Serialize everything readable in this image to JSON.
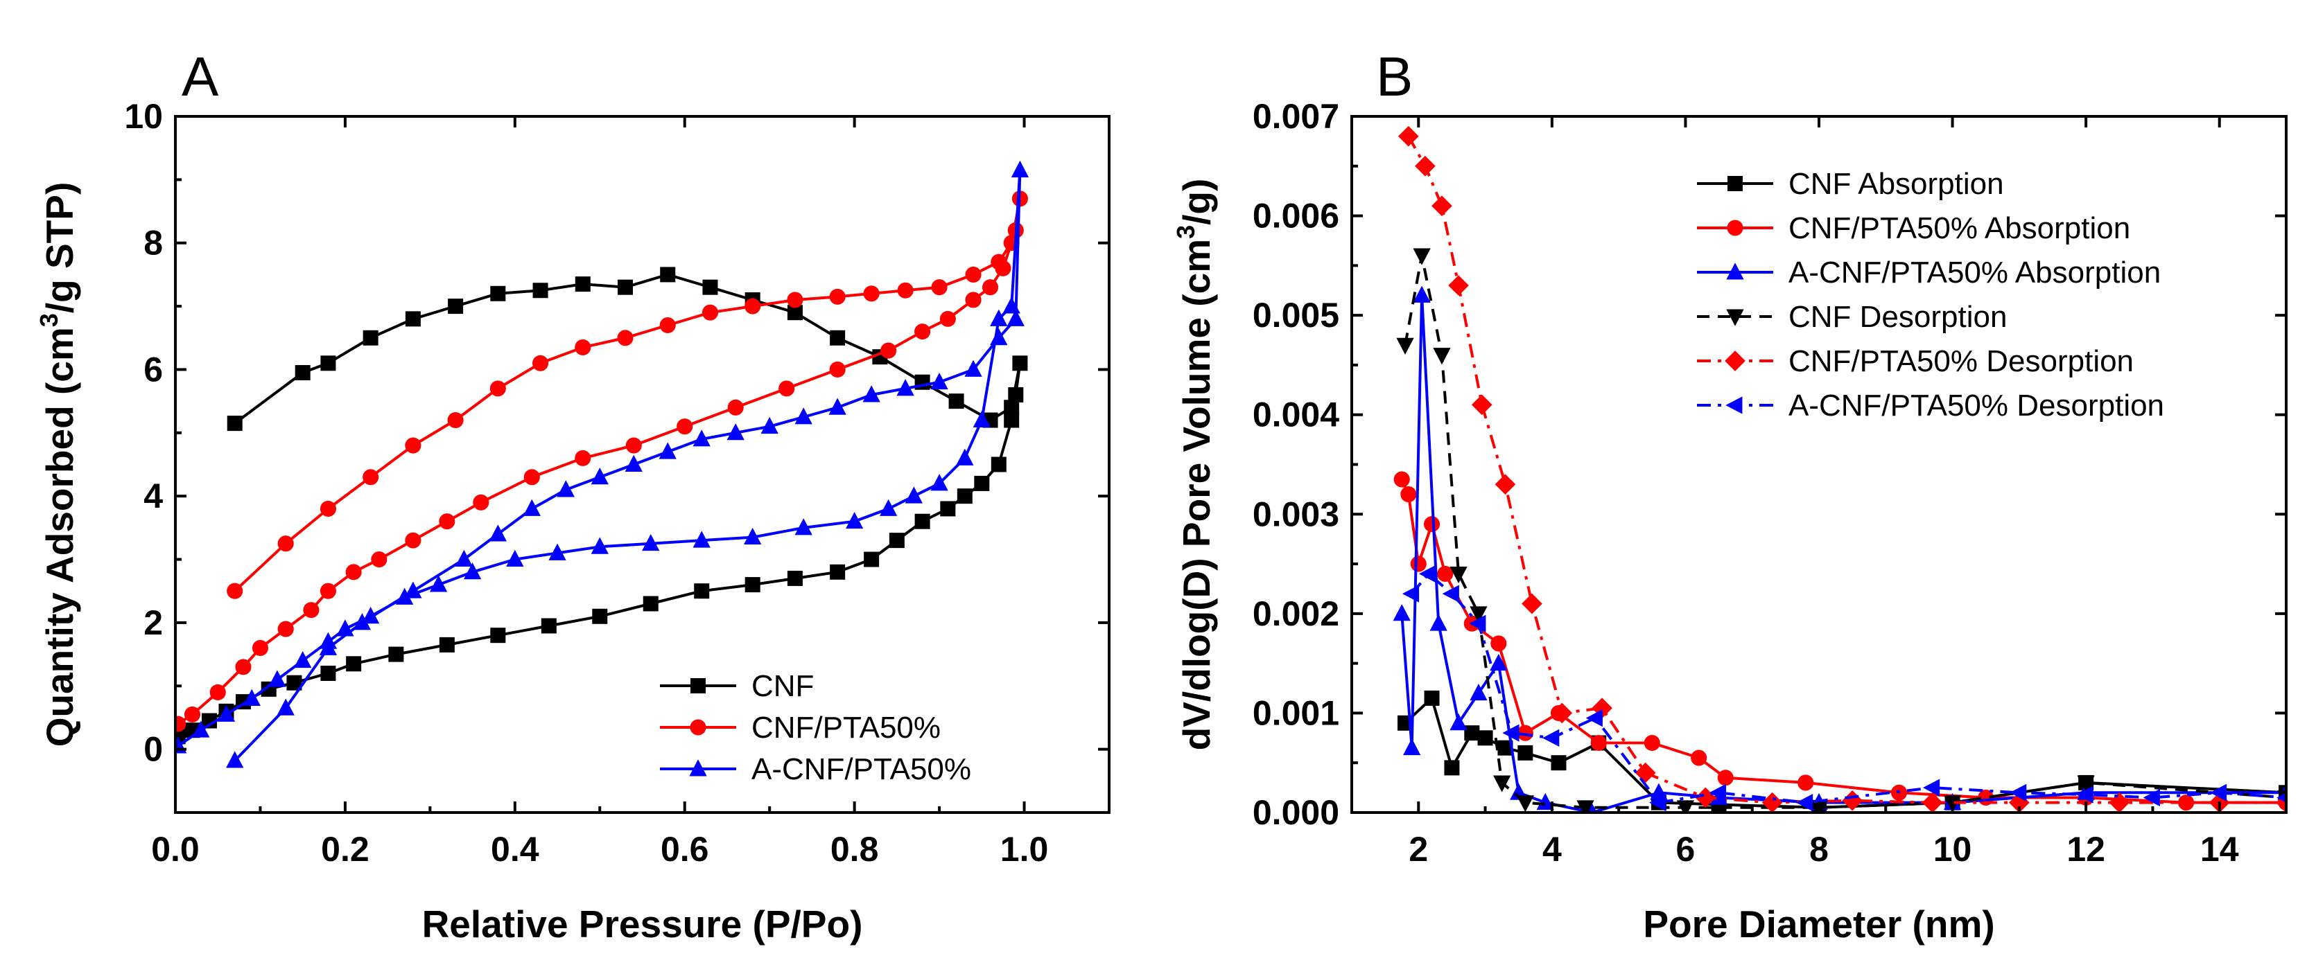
{
  "chart_data": [
    {
      "panel": "A",
      "type": "line",
      "xlabel": "Relative Pressure (P/Po)",
      "ylabel_pre": "Quantity Adsorbed (cm",
      "ylabel_sup": "3",
      "ylabel_post": "/g STP)",
      "xlim": [
        0.0,
        1.1
      ],
      "ylim": [
        -1,
        10
      ],
      "xticks": [
        "0.0",
        "0.2",
        "0.4",
        "0.6",
        "0.8",
        "1.0"
      ],
      "xtick_values": [
        0,
        0.2,
        0.4,
        0.6,
        0.8,
        1.0
      ],
      "yticks": [
        "0",
        "2",
        "4",
        "6",
        "8",
        "10"
      ],
      "ytick_values": [
        0,
        2,
        4,
        6,
        8,
        10
      ],
      "legend_position": "bottom-right",
      "series": [
        {
          "name": "CNF",
          "color": "#000000",
          "marker": "square",
          "x": [
            0.003,
            0.02,
            0.04,
            0.06,
            0.08,
            0.11,
            0.14,
            0.18,
            0.21,
            0.26,
            0.32,
            0.38,
            0.44,
            0.5,
            0.56,
            0.62,
            0.68,
            0.73,
            0.78,
            0.82,
            0.85,
            0.88,
            0.91,
            0.93,
            0.95,
            0.97,
            0.985,
            0.99,
            0.995,
            0.985,
            0.96,
            0.92,
            0.88,
            0.83,
            0.78,
            0.73,
            0.68,
            0.63,
            0.58,
            0.53,
            0.48,
            0.43,
            0.38,
            0.33,
            0.28,
            0.23,
            0.18,
            0.15,
            0.07
          ],
          "y": [
            0.2,
            0.3,
            0.45,
            0.6,
            0.75,
            0.95,
            1.05,
            1.2,
            1.35,
            1.5,
            1.65,
            1.8,
            1.95,
            2.1,
            2.3,
            2.5,
            2.6,
            2.7,
            2.8,
            3.0,
            3.3,
            3.6,
            3.8,
            4.0,
            4.2,
            4.5,
            5.2,
            5.6,
            6.1,
            5.4,
            5.2,
            5.5,
            5.8,
            6.2,
            6.5,
            6.9,
            7.1,
            7.3,
            7.5,
            7.3,
            7.35,
            7.25,
            7.2,
            7.0,
            6.8,
            6.5,
            6.1,
            5.95,
            5.15
          ]
        },
        {
          "name": "CNF/PTA50%",
          "color": "#ff0000",
          "marker": "circle",
          "x": [
            0.003,
            0.02,
            0.05,
            0.08,
            0.1,
            0.13,
            0.16,
            0.18,
            0.21,
            0.24,
            0.28,
            0.32,
            0.36,
            0.42,
            0.48,
            0.54,
            0.6,
            0.66,
            0.72,
            0.78,
            0.84,
            0.88,
            0.91,
            0.94,
            0.96,
            0.975,
            0.99,
            0.995,
            0.985,
            0.97,
            0.94,
            0.9,
            0.86,
            0.82,
            0.78,
            0.73,
            0.68,
            0.63,
            0.58,
            0.53,
            0.48,
            0.43,
            0.38,
            0.33,
            0.28,
            0.23,
            0.18,
            0.13,
            0.07
          ],
          "y": [
            0.4,
            0.55,
            0.9,
            1.3,
            1.6,
            1.9,
            2.2,
            2.5,
            2.8,
            3.0,
            3.3,
            3.6,
            3.9,
            4.3,
            4.6,
            4.8,
            5.1,
            5.4,
            5.7,
            6.0,
            6.3,
            6.6,
            6.8,
            7.1,
            7.3,
            7.6,
            8.2,
            8.7,
            8.0,
            7.7,
            7.5,
            7.3,
            7.25,
            7.2,
            7.15,
            7.1,
            7.0,
            6.9,
            6.7,
            6.5,
            6.35,
            6.1,
            5.7,
            5.2,
            4.8,
            4.3,
            3.8,
            3.25,
            2.5
          ]
        },
        {
          "name": "A-CNF/PTA50%",
          "color": "#0000ff",
          "marker": "triangle",
          "x": [
            0.003,
            0.03,
            0.06,
            0.09,
            0.12,
            0.15,
            0.18,
            0.2,
            0.23,
            0.27,
            0.31,
            0.35,
            0.4,
            0.45,
            0.5,
            0.56,
            0.62,
            0.68,
            0.74,
            0.8,
            0.84,
            0.87,
            0.9,
            0.93,
            0.95,
            0.97,
            0.985,
            0.995,
            0.99,
            0.97,
            0.94,
            0.9,
            0.86,
            0.82,
            0.78,
            0.74,
            0.7,
            0.66,
            0.62,
            0.58,
            0.54,
            0.5,
            0.46,
            0.42,
            0.38,
            0.34,
            0.28,
            0.22,
            0.18,
            0.13,
            0.07
          ],
          "y": [
            0.05,
            0.3,
            0.55,
            0.8,
            1.1,
            1.4,
            1.7,
            1.9,
            2.1,
            2.4,
            2.6,
            2.8,
            3.0,
            3.1,
            3.2,
            3.25,
            3.3,
            3.35,
            3.5,
            3.6,
            3.8,
            4.0,
            4.2,
            4.6,
            5.2,
            6.8,
            7.0,
            9.15,
            6.8,
            6.5,
            6.0,
            5.8,
            5.7,
            5.6,
            5.4,
            5.25,
            5.1,
            5.0,
            4.9,
            4.7,
            4.5,
            4.3,
            4.1,
            3.8,
            3.4,
            3.0,
            2.5,
            2.0,
            1.6,
            0.65,
            -0.18
          ]
        }
      ]
    },
    {
      "panel": "B",
      "type": "line",
      "xlabel": "Pore Diameter (nm)",
      "ylabel_pre": "dV/dlog(D) Pore Volume (cm",
      "ylabel_sup": "3",
      "ylabel_post": "/g)",
      "xlim": [
        1,
        15
      ],
      "ylim": [
        0,
        0.007
      ],
      "xticks": [
        "2",
        "4",
        "6",
        "8",
        "10",
        "12",
        "14"
      ],
      "xtick_values": [
        2,
        4,
        6,
        8,
        10,
        12,
        14
      ],
      "yticks": [
        "0.000",
        "0.001",
        "0.002",
        "0.003",
        "0.004",
        "0.005",
        "0.006",
        "0.007"
      ],
      "ytick_values": [
        0,
        0.001,
        0.002,
        0.003,
        0.004,
        0.005,
        0.006,
        0.007
      ],
      "legend_position": "top-right",
      "series": [
        {
          "name": "CNF Absorption",
          "color": "#000000",
          "marker": "square",
          "dash": "solid",
          "x": [
            1.8,
            2.2,
            2.5,
            2.8,
            3.0,
            3.3,
            3.6,
            4.1,
            4.7,
            5.6,
            6.5,
            8,
            10,
            12,
            15
          ],
          "y": [
            0.0009,
            0.00115,
            0.00045,
            0.0008,
            0.00075,
            0.00065,
            0.0006,
            0.0005,
            0.0007,
            0.0001,
            8e-05,
            5e-05,
            0.0001,
            0.0003,
            0.0002
          ]
        },
        {
          "name": "CNF/PTA50% Absorption",
          "color": "#ff0000",
          "marker": "circle",
          "dash": "solid",
          "x": [
            1.75,
            1.85,
            2.0,
            2.2,
            2.4,
            2.8,
            3.2,
            3.6,
            4.1,
            4.7,
            5.5,
            6.2,
            6.6,
            7.8,
            9.2,
            10.5,
            12,
            13.5,
            15
          ],
          "y": [
            0.00335,
            0.0032,
            0.0025,
            0.0029,
            0.0024,
            0.0019,
            0.0017,
            0.0008,
            0.001,
            0.0007,
            0.0007,
            0.00055,
            0.00035,
            0.0003,
            0.0002,
            0.00015,
            0.00015,
            0.0001,
            0.0001
          ]
        },
        {
          "name": "A-CNF/PTA50% Absorption",
          "color": "#0000ff",
          "marker": "triangle",
          "dash": "solid",
          "x": [
            1.75,
            1.9,
            2.05,
            2.3,
            2.6,
            2.9,
            3.2,
            3.5,
            3.9,
            4.6,
            5.6,
            6.5,
            8,
            10,
            12,
            15
          ],
          "y": [
            0.002,
            0.00065,
            0.0052,
            0.0019,
            0.0009,
            0.0012,
            0.0015,
            0.0002,
            0.0001,
            0.0,
            0.0002,
            0.00015,
            0.0001,
            0.0001,
            0.0002,
            0.0002
          ]
        },
        {
          "name": "CNF Desorption",
          "color": "#000000",
          "marker": "tri-down",
          "dash": "dash",
          "x": [
            1.8,
            2.05,
            2.35,
            2.6,
            2.9,
            3.25,
            3.6,
            4.5,
            6,
            8,
            10,
            12,
            15
          ],
          "y": [
            0.0047,
            0.0056,
            0.0046,
            0.0024,
            0.002,
            0.0003,
            0.0001,
            5e-05,
            5e-05,
            5e-05,
            0.0001,
            0.0003,
            0.00015
          ]
        },
        {
          "name": "CNF/PTA50% Desorption",
          "color": "#ff0000",
          "marker": "diamond",
          "dash": "dashdot",
          "x": [
            1.85,
            2.1,
            2.35,
            2.6,
            2.95,
            3.3,
            3.7,
            4.15,
            4.75,
            5.4,
            6.3,
            7.3,
            8.5,
            9.7,
            11,
            12.5,
            14,
            15
          ],
          "y": [
            0.0068,
            0.0065,
            0.0061,
            0.0053,
            0.0041,
            0.0033,
            0.0021,
            0.001,
            0.00105,
            0.0004,
            0.00015,
            0.0001,
            0.00012,
            0.0001,
            0.0001,
            0.0001,
            0.0001,
            0.0001
          ]
        },
        {
          "name": "A-CNF/PTA50% Desorption",
          "color": "#0000ff",
          "marker": "tri-left",
          "dash": "dashdot",
          "x": [
            1.9,
            2.15,
            2.5,
            2.9,
            3.4,
            4.0,
            4.65,
            5.6,
            6.5,
            7.8,
            9.7,
            11,
            12,
            13,
            14,
            15
          ],
          "y": [
            0.0022,
            0.0024,
            0.0022,
            0.0019,
            0.0008,
            0.00075,
            0.00095,
            0.0001,
            0.0002,
            0.0001,
            0.00025,
            0.0002,
            0.00018,
            0.00015,
            0.0002,
            0.00015
          ]
        }
      ]
    }
  ]
}
